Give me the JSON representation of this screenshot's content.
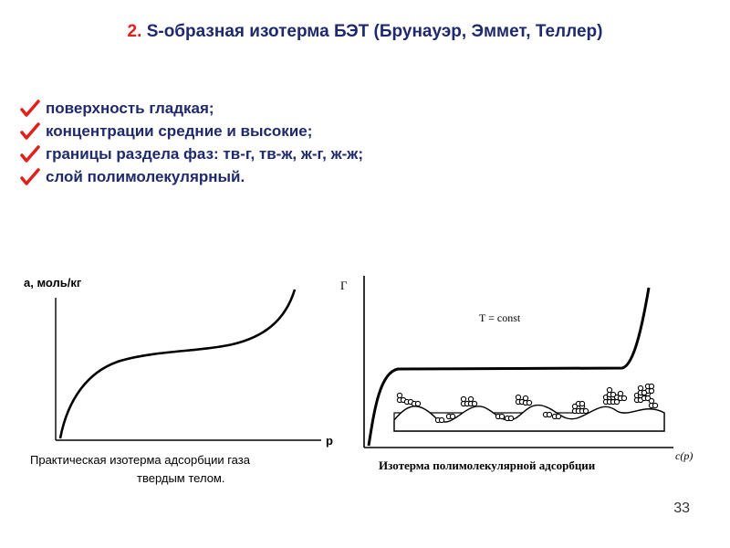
{
  "title": {
    "number": "2.",
    "text": "S-образная изотерма БЭТ (Брунауэр, Эммет, Теллер)"
  },
  "bullets": [
    "поверхность гладкая;",
    "концентрации средние и высокие;",
    "границы раздела фаз: тв-г, тв-ж, ж-г, ж-ж;",
    "слой полимолекулярный."
  ],
  "bullet_icon": "checkmark-icon",
  "colors": {
    "accent": "#e0201b",
    "title": "#1f2a6e"
  },
  "left_figure": {
    "y_axis_label": "а, моль/кг",
    "x_axis_label": "p",
    "caption_line1": "Практическая изотерма адсорбции газа",
    "caption_line2": "твердым телом."
  },
  "right_figure": {
    "y_axis_label": "Г",
    "x_axis_label": "c(p)",
    "condition": "T = const",
    "caption": "Изотерма полимолекулярной адсорбции"
  },
  "page_number": "33"
}
